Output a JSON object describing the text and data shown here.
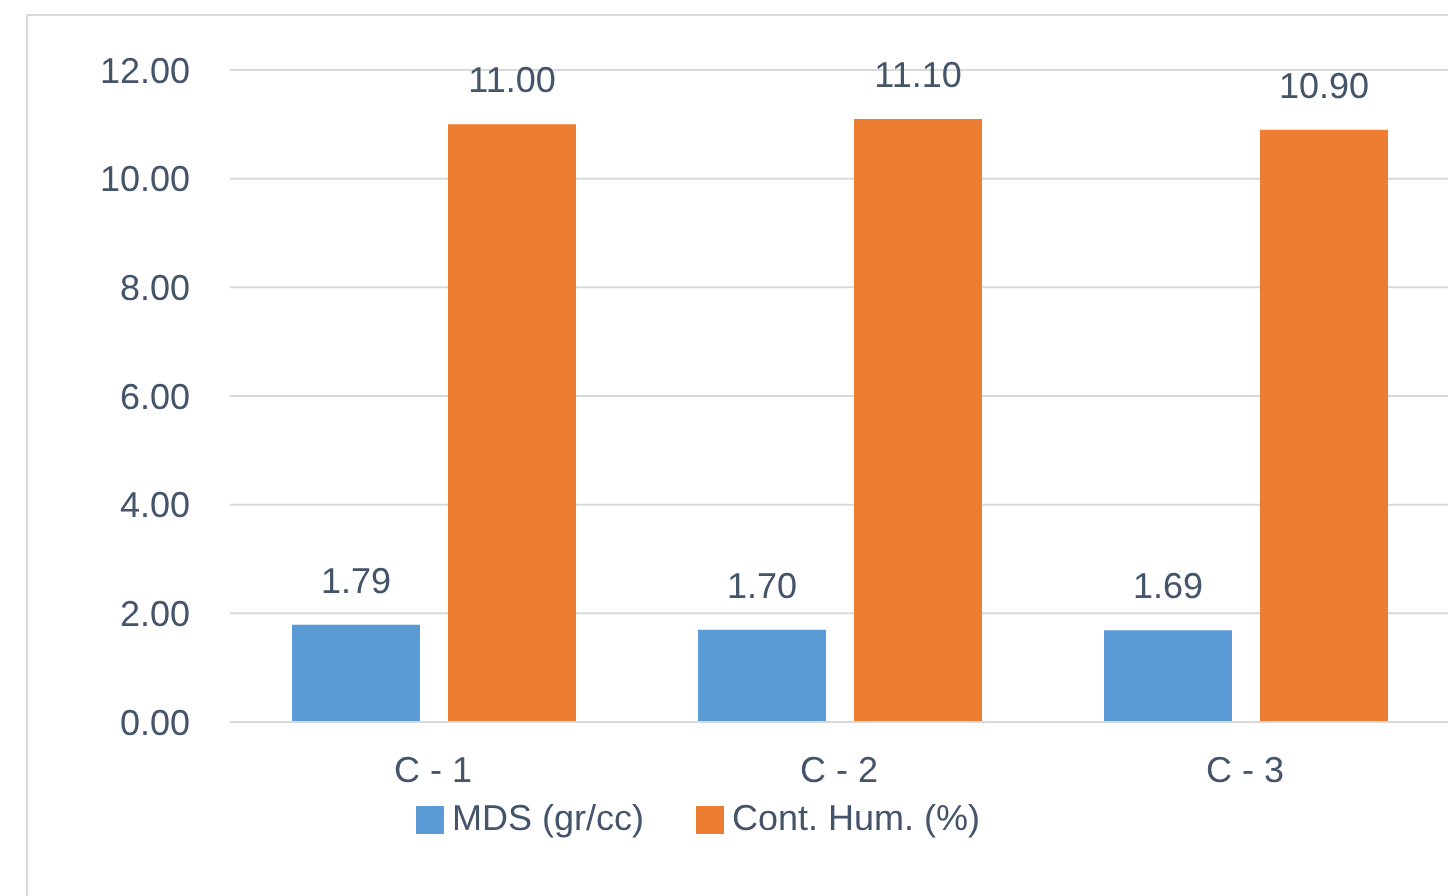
{
  "chart_data": {
    "type": "bar",
    "categories": [
      "C - 1",
      "C - 2",
      "C - 3"
    ],
    "series": [
      {
        "name": "MDS (gr/cc)",
        "color": "#5b9bd5",
        "values": [
          1.79,
          1.7,
          1.69
        ],
        "value_labels": [
          "1.79",
          "1.70",
          "1.69"
        ]
      },
      {
        "name": "Cont. Hum. (%)",
        "color": "#ed7d31",
        "values": [
          11.0,
          11.1,
          10.9
        ],
        "value_labels": [
          "11.00",
          "11.10",
          "10.90"
        ]
      }
    ],
    "ylim": [
      0,
      12
    ],
    "yticks": [
      {
        "value": 0,
        "label": "0.00"
      },
      {
        "value": 2,
        "label": "2.00"
      },
      {
        "value": 4,
        "label": "4.00"
      },
      {
        "value": 6,
        "label": "6.00"
      },
      {
        "value": 8,
        "label": "8.00"
      },
      {
        "value": 10,
        "label": "10.00"
      },
      {
        "value": 12,
        "label": "12.00"
      }
    ],
    "grid": "y",
    "legend": "bottom"
  }
}
